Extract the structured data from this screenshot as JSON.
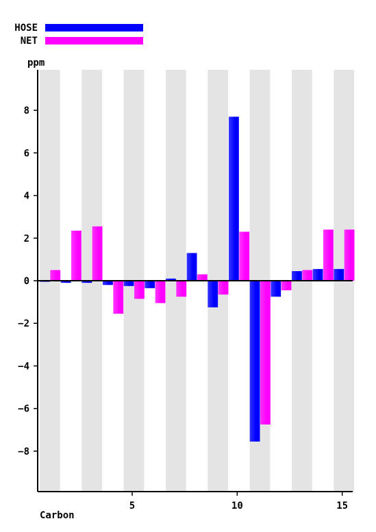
{
  "chart_data": {
    "type": "bar",
    "xlabel": "Carbon",
    "ylabel": "ppm",
    "x": [
      1,
      2,
      3,
      4,
      5,
      6,
      7,
      8,
      9,
      10,
      11,
      12,
      13,
      14,
      15
    ],
    "x_ticks": [
      "5",
      "10",
      "15"
    ],
    "x_tick_values": [
      5,
      10,
      15
    ],
    "y_ticks": [
      "−8",
      "−6",
      "−4",
      "−2",
      "0",
      "2",
      "4",
      "6",
      "8"
    ],
    "y_tick_values": [
      -8,
      -6,
      -4,
      -2,
      0,
      2,
      4,
      6,
      8
    ],
    "ylim": [
      -9.9,
      9.9
    ],
    "xlim": [
      0.5,
      15.5
    ],
    "grid": "alternating vertical bands",
    "legend_position": "top-left",
    "series": [
      {
        "name": "HOSE",
        "color": "#0000ff",
        "values": [
          -0.05,
          -0.1,
          -0.1,
          -0.2,
          -0.25,
          -0.35,
          0.1,
          1.3,
          -1.25,
          7.7,
          -7.55,
          -0.75,
          0.45,
          0.55,
          0.55
        ]
      },
      {
        "name": "NET",
        "color": "#ff00ff",
        "values": [
          0.5,
          2.35,
          2.55,
          -1.55,
          -0.85,
          -1.05,
          -0.75,
          0.3,
          -0.65,
          2.3,
          -6.75,
          -0.45,
          0.5,
          2.4,
          2.4
        ]
      }
    ]
  }
}
